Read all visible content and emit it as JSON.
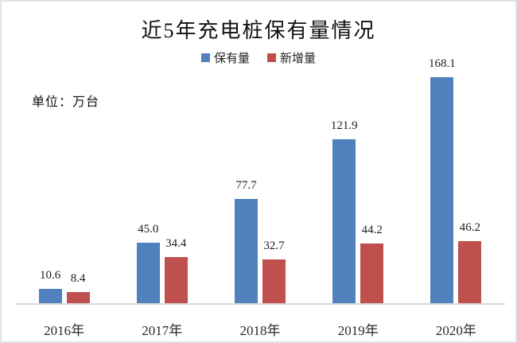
{
  "page": {
    "title": "近5年充电桩保有量情况",
    "unit_label": "单位：万台"
  },
  "legend": {
    "items": [
      {
        "label": "保有量",
        "color": "#4f81bd"
      },
      {
        "label": "新增量",
        "color": "#c0504d"
      }
    ]
  },
  "chart_data": {
    "type": "bar",
    "title": "近5年充电桩保有量情况",
    "categories": [
      "2016年",
      "2017年",
      "2018年",
      "2019年",
      "2020年"
    ],
    "series": [
      {
        "name": "保有量",
        "color": "#4f81bd",
        "values": [
          10.6,
          45.0,
          77.7,
          121.9,
          168.1
        ]
      },
      {
        "name": "新增量",
        "color": "#c0504d",
        "values": [
          8.4,
          34.4,
          32.7,
          44.2,
          46.2
        ]
      }
    ],
    "xlabel": "",
    "ylabel": "单位：万台",
    "ylim": [
      0,
      180
    ],
    "grid": false,
    "y_axis_ticks_visible": false,
    "legend_position": "top-center",
    "data_labels": "outside-end",
    "axis_line_color": "#d9d9d9",
    "border_color": "#e2e2e2"
  }
}
